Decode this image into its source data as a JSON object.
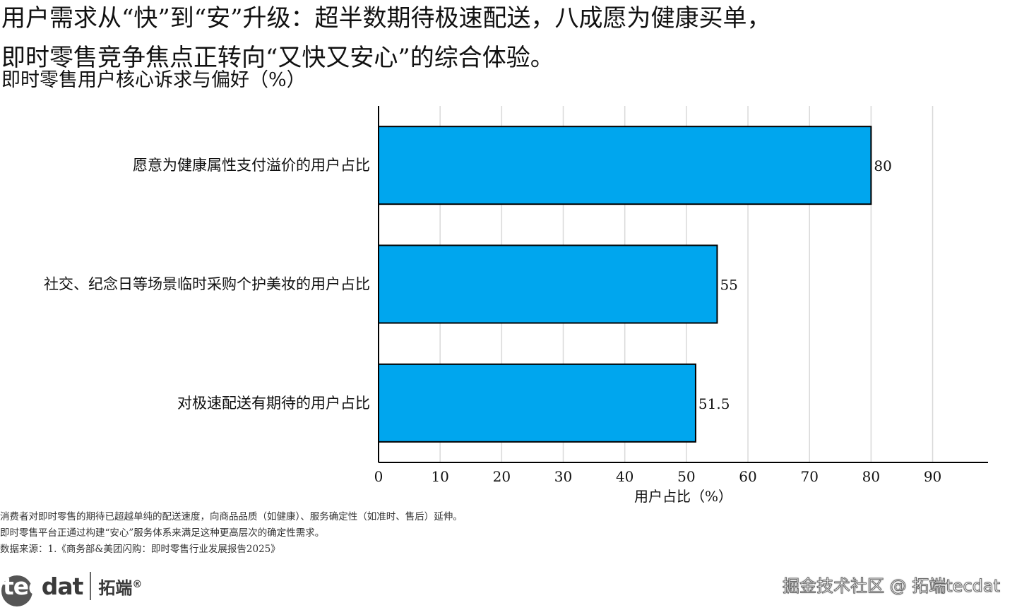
{
  "headline": {
    "line1": "用户需求从“快”到“安”升级：超半数期待极速配送，八成愿为健康买单，",
    "line2": "即时零售竞争焦点正转向“又快又安心”的综合体验。"
  },
  "subtitle": "即时零售用户核心诉求与偏好（%）",
  "chart_data": {
    "type": "bar",
    "orientation": "horizontal",
    "categories": [
      "愿意为健康属性支付溢价的用户占比",
      "社交、纪念日等场景临时采购个护美妆的用户占比",
      "对极速配送有期待的用户占比"
    ],
    "values": [
      80,
      55,
      51.5
    ],
    "value_labels": [
      "80",
      "55",
      "51.5"
    ],
    "xlabel": "用户占比（%）",
    "ylabel": "",
    "xlim": [
      0,
      99
    ],
    "xticks": [
      0,
      10,
      20,
      30,
      40,
      50,
      60,
      70,
      80,
      90
    ],
    "grid": true,
    "bar_color": "#00A6EE",
    "bar_edge_color": "#000000"
  },
  "notes": [
    "消费者对即时零售的期待已超越单纯的配送速度，向商品品质（如健康）、服务确定性（如准时、售后）延伸。",
    "即时零售平台正通过构建“安心”服务体系来满足这种更高层次的确定性需求。",
    "数据来源：1.《商务部&美团闪购：即时零售行业发展报告2025》"
  ],
  "logo": {
    "mark_prefix": "te",
    "mark_circle": "c",
    "mark_suffix": "dat",
    "name_cn": "拓端",
    "registered": "®"
  },
  "watermark": "掘金技术社区 @ 拓端tecdat"
}
